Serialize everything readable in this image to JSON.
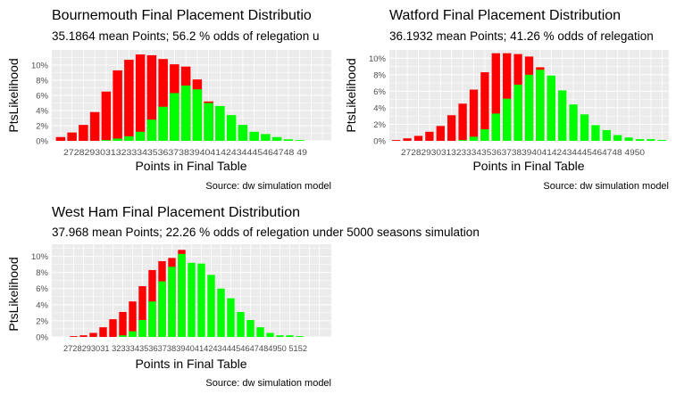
{
  "colors": {
    "panel_bg": "#ebebeb",
    "grid": "#ffffff",
    "relegation": "#ff0000",
    "safe": "#00ff00"
  },
  "chart_data": [
    {
      "type": "bar",
      "title": "Bournemouth Final Placement Distributio",
      "subtitle": "35.1864 mean Points; 56.2 % odds of relegation u",
      "xlabel": "Points in Final Table",
      "ylabel": "PtsLikelihood",
      "caption": "Source:  dw simulation model",
      "x_tick_text": "27282930313233343536373839404142434445464748 49",
      "x": [
        26,
        27,
        28,
        29,
        30,
        31,
        32,
        33,
        34,
        35,
        36,
        37,
        38,
        39,
        40,
        41,
        42,
        43,
        44,
        45,
        46,
        47,
        48,
        49
      ],
      "ylim": [
        0,
        0.12
      ],
      "yticks": [
        "0%",
        "2%",
        "4%",
        "6%",
        "8%",
        "10%"
      ],
      "series": [
        {
          "name": "relegation",
          "values": [
            0.005,
            0.011,
            0.021,
            0.038,
            0.065,
            0.093,
            0.107,
            0.114,
            0.113,
            0.108,
            0.101,
            0.098,
            0.081,
            0.052,
            0,
            0,
            0,
            0,
            0,
            0,
            0,
            0,
            0,
            0
          ]
        },
        {
          "name": "safe",
          "values": [
            0,
            0,
            0,
            0,
            0.001,
            0.003,
            0.006,
            0.012,
            0.028,
            0.045,
            0.063,
            0.073,
            0.068,
            0.05,
            0.046,
            0.034,
            0.021,
            0.012,
            0.009,
            0.005,
            0.002,
            0.001,
            0,
            0
          ]
        }
      ]
    },
    {
      "type": "bar",
      "title": "Watford Final Placement Distribution",
      "subtitle": "36.1932 mean Points; 41.26 % odds of relegation",
      "xlabel": "Points in Final Table",
      "ylabel": "PtsLikelihood",
      "caption": "Source:  dw simulation model",
      "x_tick_text": "27282930313233343536373839404142434445464748 4950",
      "x": [
        26,
        27,
        28,
        29,
        30,
        31,
        32,
        33,
        34,
        35,
        36,
        37,
        38,
        39,
        40,
        41,
        42,
        43,
        44,
        45,
        46,
        47,
        48,
        49,
        50
      ],
      "ylim": [
        0,
        0.11
      ],
      "yticks": [
        "0%",
        "2%",
        "4%",
        "6%",
        "8%",
        "10%"
      ],
      "series": [
        {
          "name": "relegation",
          "values": [
            0.001,
            0.003,
            0.006,
            0.011,
            0.018,
            0.031,
            0.045,
            0.062,
            0.083,
            0.106,
            0.106,
            0.105,
            0.102,
            0.089,
            0.074,
            0,
            0,
            0,
            0,
            0,
            0,
            0,
            0,
            0,
            0
          ]
        },
        {
          "name": "safe",
          "values": [
            0,
            0,
            0,
            0,
            0,
            0,
            0.001,
            0.005,
            0.014,
            0.033,
            0.051,
            0.068,
            0.08,
            0.086,
            0.079,
            0.061,
            0.044,
            0.032,
            0.019,
            0.013,
            0.007,
            0.004,
            0.002,
            0.002,
            0.001
          ]
        }
      ]
    },
    {
      "type": "bar",
      "title": "West Ham Final Placement Distribution",
      "subtitle": "37.968 mean Points; 22.26 % odds of relegation under 5000 seasons simulation",
      "xlabel": "Points in Final Table",
      "ylabel": "PtsLikelihood",
      "caption": "Source:  dw simulation model",
      "x_tick_text": "2728293031 32333435363738394041424344454647484950 5152",
      "x": [
        26,
        27,
        28,
        29,
        30,
        31,
        32,
        33,
        34,
        35,
        36,
        37,
        38,
        39,
        40,
        41,
        42,
        43,
        44,
        45,
        46,
        47,
        48,
        49,
        50,
        51,
        52
      ],
      "ylim": [
        0,
        0.115
      ],
      "yticks": [
        "0%",
        "2%",
        "4%",
        "6%",
        "8%",
        "10%"
      ],
      "series": [
        {
          "name": "relegation",
          "values": [
            0,
            0.001,
            0.002,
            0.005,
            0.012,
            0.022,
            0.031,
            0.044,
            0.063,
            0.083,
            0.094,
            0.098,
            0.108,
            0,
            0,
            0,
            0,
            0,
            0,
            0,
            0,
            0,
            0,
            0,
            0,
            0,
            0
          ]
        },
        {
          "name": "safe",
          "values": [
            0,
            0,
            0,
            0,
            0,
            0,
            0.002,
            0.007,
            0.021,
            0.044,
            0.069,
            0.087,
            0.103,
            0.092,
            0.091,
            0.077,
            0.06,
            0.048,
            0.031,
            0.021,
            0.012,
            0.005,
            0.002,
            0.002,
            0.001,
            0,
            0
          ]
        }
      ]
    }
  ]
}
